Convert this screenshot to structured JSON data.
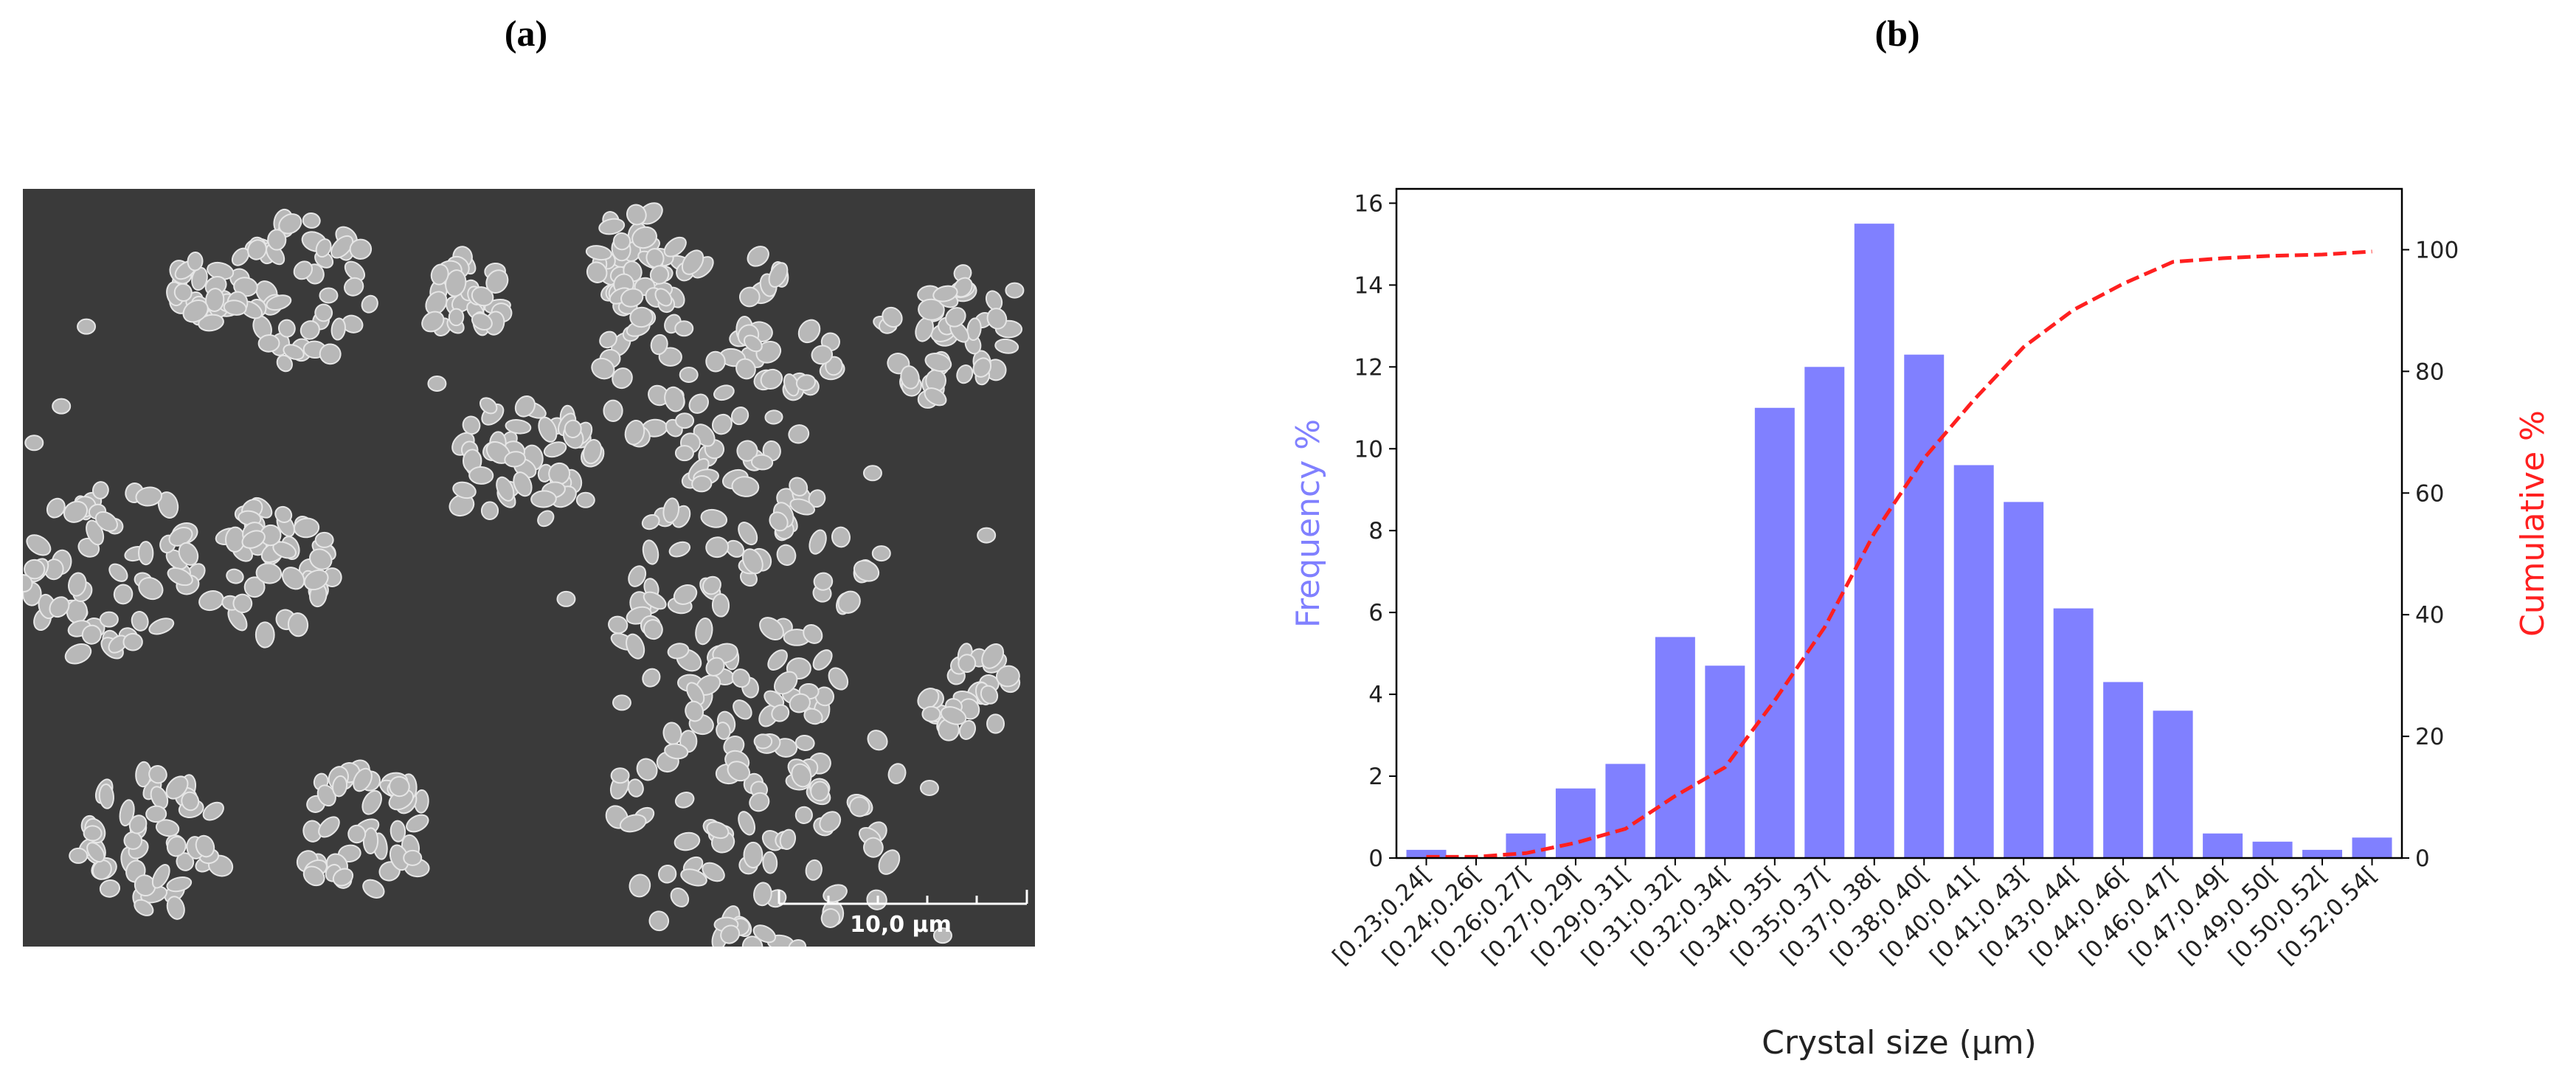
{
  "panel_labels": [
    "(a)",
    "(b)"
  ],
  "micrograph": {
    "scale_bar": "10,0 µm"
  },
  "chart_data": {
    "type": "bar",
    "xlabel": "Crystal size (μm)",
    "ylabel": "Frequency %",
    "y2label": "Cumulative %",
    "categories": [
      "[0.23;0.24[",
      "[0.24;0.26[",
      "[0.26;0.27[",
      "[0.27;0.29[",
      "[0.29;0.31[",
      "[0.31;0.32[",
      "[0.32;0.34[",
      "[0.34;0.35[",
      "[0.35;0.37[",
      "[0.37;0.38[",
      "[0.38;0.40[",
      "[0.40;0.41[",
      "[0.41;0.43[",
      "[0.43;0.44[",
      "[0.44;0.46[",
      "[0.46;0.47[",
      "[0.47;0.49[",
      "[0.49;0.50[",
      "[0.50;0.52[",
      "[0.52;0.54["
    ],
    "series": [
      {
        "type": "bar",
        "color": "#8080ff",
        "values": [
          0.2,
          0,
          0.6,
          1.7,
          2.3,
          5.4,
          4.7,
          11,
          12,
          15.5,
          12.3,
          9.6,
          8.7,
          6.1,
          4.3,
          3.6,
          0.6,
          0.4,
          0.2,
          0.5
        ]
      },
      {
        "type": "line",
        "axis": "y2",
        "color": "#ff2020",
        "dashed": true,
        "values": [
          0.2,
          0.2,
          0.8,
          2.5,
          4.8,
          10.2,
          14.9,
          25.9,
          37.9,
          53.4,
          65.7,
          75.3,
          84,
          90.1,
          94.4,
          98,
          98.6,
          99,
          99.2,
          99.7
        ]
      }
    ],
    "ylim": [
      0,
      16.35
    ],
    "yticks": [
      0,
      2,
      4,
      6,
      8,
      10,
      12,
      14,
      16
    ],
    "y2lim": [
      0,
      110
    ],
    "y2ticks": [
      0,
      20,
      40,
      60,
      80,
      100
    ]
  }
}
